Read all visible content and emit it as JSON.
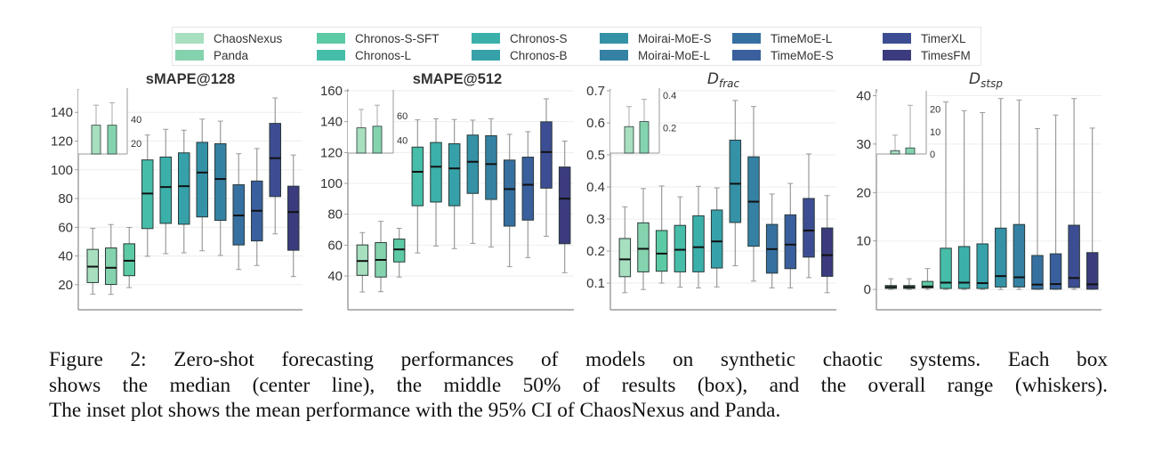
{
  "chart_data": {
    "type": "box",
    "legend": {
      "placement": "top-center",
      "entries": [
        {
          "label": "ChaosNexus",
          "color": "#a7dfbf"
        },
        {
          "label": "Panda",
          "color": "#84d3ae"
        },
        {
          "label": "Chronos-S-SFT",
          "color": "#5ccaa5"
        },
        {
          "label": "Chronos-L",
          "color": "#46bda8"
        },
        {
          "label": "Chronos-S",
          "color": "#3bb0aa"
        },
        {
          "label": "Chronos-B",
          "color": "#36a1a9"
        },
        {
          "label": "Moirai-MoE-S",
          "color": "#3491a6"
        },
        {
          "label": "Moirai-MoE-L",
          "color": "#3581a3"
        },
        {
          "label": "TimeMoE-L",
          "color": "#3670a1"
        },
        {
          "label": "TimeMoE-S",
          "color": "#3a5f9d"
        },
        {
          "label": "TimerXL",
          "color": "#3d4d93"
        },
        {
          "label": "TimesFM",
          "color": "#3b3b7e"
        }
      ]
    },
    "panels": [
      {
        "title": "sMAPE@128",
        "title_style": "bold",
        "ylim": [
          10,
          155
        ],
        "yticks": [
          20,
          40,
          60,
          80,
          100,
          120,
          140
        ],
        "grid": true,
        "boxes": [
          {
            "model": "ChaosNexus",
            "min": 13.5,
            "q1": 21.5,
            "median": 32.6,
            "q3": 44.6,
            "max": 59.3
          },
          {
            "model": "Panda",
            "min": 13.3,
            "q1": 20.2,
            "median": 31.8,
            "q3": 45.6,
            "max": 61.9
          },
          {
            "model": "Chronos-S-SFT",
            "min": 18.0,
            "q1": 26.3,
            "median": 36.7,
            "q3": 48.5,
            "max": 59.9
          },
          {
            "model": "Chronos-L",
            "min": 39.8,
            "q1": 59.1,
            "median": 83.5,
            "q3": 106.9,
            "max": 124.2
          },
          {
            "model": "Chronos-S",
            "min": 41.6,
            "q1": 62.7,
            "median": 88.0,
            "q3": 108.9,
            "max": 128.2
          },
          {
            "model": "Chronos-B",
            "min": 42.2,
            "q1": 62.1,
            "median": 88.6,
            "q3": 111.8,
            "max": 127.6
          },
          {
            "model": "Moirai-MoE-S",
            "min": 43.6,
            "q1": 67.2,
            "median": 98.1,
            "q3": 119.1,
            "max": 135.3
          },
          {
            "model": "Moirai-MoE-L",
            "min": 40.4,
            "q1": 64.8,
            "median": 93.6,
            "q3": 118.2,
            "max": 133.9
          },
          {
            "model": "TimeMoE-L",
            "min": 30.6,
            "q1": 47.7,
            "median": 68.2,
            "q3": 89.6,
            "max": 111.2
          },
          {
            "model": "TimeMoE-S",
            "min": 33.4,
            "q1": 50.5,
            "median": 71.5,
            "q3": 92.2,
            "max": 114.8
          },
          {
            "model": "TimerXL",
            "min": 55.4,
            "q1": 81.4,
            "median": 108.1,
            "q3": 132.3,
            "max": 150.0
          },
          {
            "model": "TimesFM",
            "min": 25.7,
            "q1": 44.0,
            "median": 70.6,
            "q3": 88.6,
            "max": 110.3
          }
        ],
        "inset": {
          "type": "bar_with_ci",
          "yticks": [
            20,
            40
          ],
          "ylim": [
            11,
            60
          ],
          "bars": [
            {
              "model": "ChaosNexus",
              "mean": 35.0,
              "ci_upper": 51.7
            },
            {
              "model": "Panda",
              "mean": 35.0,
              "ci_upper": 53.8
            }
          ]
        }
      },
      {
        "title": "sMAPE@512",
        "title_style": "bold",
        "ylim": [
          25,
          160
        ],
        "yticks": [
          40,
          60,
          80,
          100,
          120,
          140,
          160
        ],
        "grid": true,
        "boxes": [
          {
            "model": "ChaosNexus",
            "min": 29.6,
            "q1": 40.4,
            "median": 49.7,
            "q3": 60.1,
            "max": 68.1
          },
          {
            "model": "Panda",
            "min": 29.8,
            "q1": 39.3,
            "median": 50.4,
            "q3": 61.6,
            "max": 75.4
          },
          {
            "model": "Chronos-S-SFT",
            "min": 39.3,
            "q1": 49.1,
            "median": 57.2,
            "q3": 63.9,
            "max": 70.9
          },
          {
            "model": "Chronos-L",
            "min": 54.9,
            "q1": 85.5,
            "median": 107.5,
            "q3": 123.5,
            "max": 141.2
          },
          {
            "model": "Chronos-S",
            "min": 59.4,
            "q1": 87.9,
            "median": 110.8,
            "q3": 126.5,
            "max": 141.9
          },
          {
            "model": "Chronos-B",
            "min": 57.7,
            "q1": 85.5,
            "median": 109.7,
            "q3": 125.7,
            "max": 141.4
          },
          {
            "model": "Moirai-MoE-S",
            "min": 61.1,
            "q1": 93.5,
            "median": 114.0,
            "q3": 131.3,
            "max": 141.0
          },
          {
            "model": "Moirai-MoE-L",
            "min": 58.8,
            "q1": 89.6,
            "median": 112.5,
            "q3": 130.9,
            "max": 141.9
          },
          {
            "model": "TimeMoE-L",
            "min": 46.0,
            "q1": 72.3,
            "median": 96.3,
            "q3": 115.1,
            "max": 131.8
          },
          {
            "model": "TimeMoE-S",
            "min": 51.9,
            "q1": 76.2,
            "median": 99.1,
            "q3": 117.0,
            "max": 133.5
          },
          {
            "model": "TimerXL",
            "min": 65.7,
            "q1": 96.9,
            "median": 120.3,
            "q3": 139.9,
            "max": 154.8
          },
          {
            "model": "TimesFM",
            "min": 42.1,
            "q1": 60.9,
            "median": 90.1,
            "q3": 110.6,
            "max": 127.4
          }
        ],
        "inset": {
          "type": "bar_with_ci",
          "yticks": [
            40,
            60
          ],
          "ylim": [
            29.7,
            75
          ],
          "bars": [
            {
              "model": "ChaosNexus",
              "mean": 50.1,
              "ci_upper": 65.0
            },
            {
              "model": "Panda",
              "mean": 51.4,
              "ci_upper": 68.4
            }
          ]
        }
      },
      {
        "title": "D",
        "title_subscript": "frac",
        "title_style": "italic",
        "ylim": [
          0.05,
          0.7
        ],
        "yticks": [
          0.1,
          0.2,
          0.3,
          0.4,
          0.5,
          0.6,
          0.7
        ],
        "grid": true,
        "boxes": [
          {
            "model": "ChaosNexus",
            "min": 0.07,
            "q1": 0.12,
            "median": 0.174,
            "q3": 0.239,
            "max": 0.338
          },
          {
            "model": "Panda",
            "min": 0.08,
            "q1": 0.135,
            "median": 0.207,
            "q3": 0.288,
            "max": 0.395
          },
          {
            "model": "Chronos-S-SFT",
            "min": 0.1,
            "q1": 0.137,
            "median": 0.192,
            "q3": 0.264,
            "max": 0.403
          },
          {
            "model": "Chronos-L",
            "min": 0.087,
            "q1": 0.135,
            "median": 0.204,
            "q3": 0.28,
            "max": 0.369
          },
          {
            "model": "Chronos-S",
            "min": 0.085,
            "q1": 0.135,
            "median": 0.212,
            "q3": 0.31,
            "max": 0.402
          },
          {
            "model": "Chronos-B",
            "min": 0.088,
            "q1": 0.147,
            "median": 0.23,
            "q3": 0.328,
            "max": 0.397
          },
          {
            "model": "Moirai-MoE-S",
            "min": 0.154,
            "q1": 0.289,
            "median": 0.41,
            "q3": 0.546,
            "max": 0.67
          },
          {
            "model": "Moirai-MoE-L",
            "min": 0.106,
            "q1": 0.215,
            "median": 0.354,
            "q3": 0.494,
            "max": 0.651
          },
          {
            "model": "TimeMoE-L",
            "min": 0.085,
            "q1": 0.131,
            "median": 0.206,
            "q3": 0.283,
            "max": 0.378
          },
          {
            "model": "TimeMoE-S",
            "min": 0.085,
            "q1": 0.145,
            "median": 0.22,
            "q3": 0.313,
            "max": 0.411
          },
          {
            "model": "TimerXL",
            "min": 0.117,
            "q1": 0.181,
            "median": 0.264,
            "q3": 0.364,
            "max": 0.503
          },
          {
            "model": "TimesFM",
            "min": 0.07,
            "q1": 0.121,
            "median": 0.187,
            "q3": 0.272,
            "max": 0.373
          }
        ],
        "inset": {
          "type": "bar_with_ci",
          "yticks": [
            0.2,
            0.4
          ],
          "ylim": [
            0.044,
            0.4
          ],
          "bars": [
            {
              "model": "ChaosNexus",
              "mean": 0.207,
              "ci_upper": 0.33
            },
            {
              "model": "Panda",
              "mean": 0.238,
              "ci_upper": 0.375
            }
          ]
        }
      },
      {
        "title": "D",
        "title_subscript": "stsp",
        "title_style": "italic",
        "ylim": [
          -2,
          41
        ],
        "yticks": [
          0,
          10,
          20,
          30,
          40
        ],
        "grid": true,
        "boxes": [
          {
            "model": "ChaosNexus",
            "min": 0.0,
            "q1": 0.2,
            "median": 0.5,
            "q3": 0.8,
            "max": 2.2
          },
          {
            "model": "Panda",
            "min": 0.0,
            "q1": 0.2,
            "median": 0.5,
            "q3": 0.8,
            "max": 2.2
          },
          {
            "model": "Chronos-S-SFT",
            "min": 0.0,
            "q1": 0.3,
            "median": 0.6,
            "q3": 1.65,
            "max": 4.3
          },
          {
            "model": "Chronos-L",
            "min": 0.0,
            "q1": 0.2,
            "median": 1.4,
            "q3": 8.5,
            "max": 38.7
          },
          {
            "model": "Chronos-S",
            "min": 0.0,
            "q1": 0.2,
            "median": 1.4,
            "q3": 8.85,
            "max": 36.9
          },
          {
            "model": "Chronos-B",
            "min": 0.0,
            "q1": 0.2,
            "median": 1.3,
            "q3": 9.4,
            "max": 36.5
          },
          {
            "model": "Moirai-MoE-S",
            "min": 0.0,
            "q1": 0.5,
            "median": 2.75,
            "q3": 12.65,
            "max": 39.4
          },
          {
            "model": "Moirai-MoE-L",
            "min": 0.0,
            "q1": 0.5,
            "median": 2.5,
            "q3": 13.4,
            "max": 39.1
          },
          {
            "model": "TimeMoE-L",
            "min": 0.0,
            "q1": 0.05,
            "median": 1.0,
            "q3": 7.0,
            "max": 33.2
          },
          {
            "model": "TimeMoE-S",
            "min": 0.0,
            "q1": 0.05,
            "median": 1.1,
            "q3": 7.35,
            "max": 36.0
          },
          {
            "model": "TimerXL",
            "min": 0.0,
            "q1": 0.4,
            "median": 2.35,
            "q3": 13.25,
            "max": 39.4
          },
          {
            "model": "TimesFM",
            "min": 0.0,
            "q1": 0.05,
            "median": 1.05,
            "q3": 7.6,
            "max": 33.3
          }
        ],
        "inset": {
          "type": "bar_with_ci",
          "yticks": [
            0,
            10,
            20
          ],
          "ylim": [
            0,
            25
          ],
          "bars": [
            {
              "model": "ChaosNexus",
              "mean": 1.5,
              "ci_upper": 8.4
            },
            {
              "model": "Panda",
              "mean": 2.7,
              "ci_upper": 21.7
            }
          ]
        }
      }
    ]
  },
  "caption": {
    "lines": [
      "Figure 2: Zero-shot forecasting performances of models on synthetic chaotic systems. Each box",
      "shows the median (center line), the middle 50% of results (box), and the overall range (whiskers).",
      "The inset plot shows the mean performance with the 95% CI of ChaosNexus and Panda."
    ]
  }
}
